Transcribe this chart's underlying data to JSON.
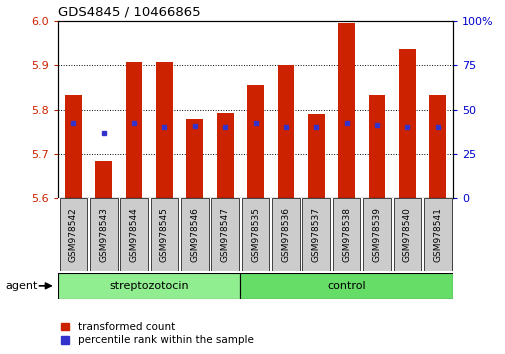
{
  "title": "GDS4845 / 10466865",
  "samples": [
    "GSM978542",
    "GSM978543",
    "GSM978544",
    "GSM978545",
    "GSM978546",
    "GSM978547",
    "GSM978535",
    "GSM978536",
    "GSM978537",
    "GSM978538",
    "GSM978539",
    "GSM978540",
    "GSM978541"
  ],
  "red_values": [
    5.833,
    5.685,
    5.908,
    5.908,
    5.778,
    5.793,
    5.857,
    5.9,
    5.79,
    5.997,
    5.833,
    5.938,
    5.833
  ],
  "blue_values": [
    5.77,
    5.748,
    5.77,
    5.762,
    5.763,
    5.762,
    5.77,
    5.762,
    5.762,
    5.77,
    5.765,
    5.762,
    5.762
  ],
  "ymin": 5.6,
  "ymax": 6.0,
  "yticks_left": [
    5.6,
    5.7,
    5.8,
    5.9,
    6.0
  ],
  "yticks_right": [
    0,
    25,
    50,
    75,
    100
  ],
  "n_strep": 6,
  "n_control": 7,
  "group_labels": [
    "streptozotocin",
    "control"
  ],
  "red_color": "#CC2200",
  "blue_color": "#3333CC",
  "bar_width": 0.55,
  "agent_label": "agent",
  "legend_red": "transformed count",
  "legend_blue": "percentile rank within the sample",
  "tick_bg": "#CCCCCC",
  "left_tick_color": "#CC2200",
  "right_tick_color": "#0000CC",
  "group_color": "#90EE90",
  "group_color2": "#66DD66"
}
